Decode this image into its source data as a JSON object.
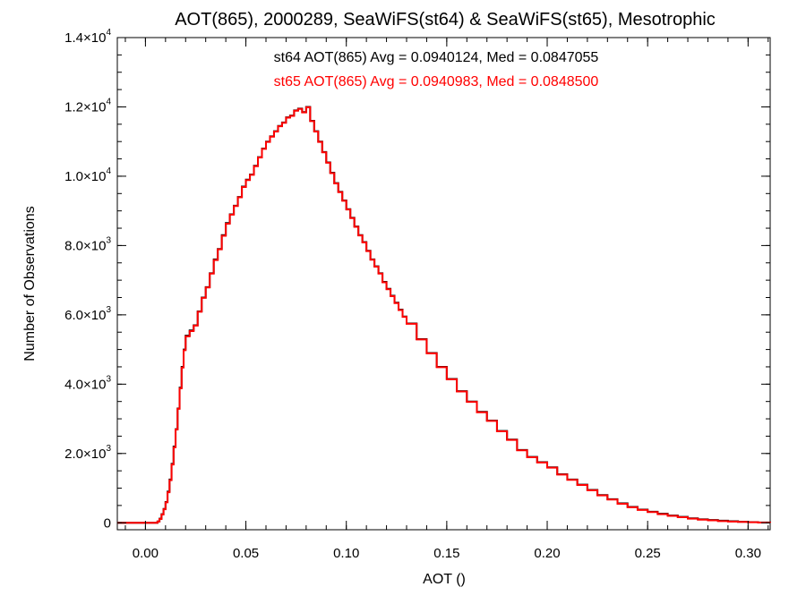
{
  "chart_data": {
    "type": "line",
    "title": "AOT(865), 2000289, SeaWiFS(st64) & SeaWiFS(st65), Mesotrophic",
    "xlabel": "AOT ()",
    "ylabel": "Number of Observations",
    "xlim": [
      -0.014,
      0.311
    ],
    "ylim": [
      -200,
      14000
    ],
    "x_ticks": [
      0.0,
      0.05,
      0.1,
      0.15,
      0.2,
      0.25,
      0.3
    ],
    "x_tick_labels": [
      "0.00",
      "0.05",
      "0.10",
      "0.15",
      "0.20",
      "0.25",
      "0.30"
    ],
    "y_ticks": [
      0,
      2000,
      4000,
      6000,
      8000,
      10000,
      12000,
      14000
    ],
    "y_tick_labels": [
      {
        "mant": "0",
        "exp": ""
      },
      {
        "mant": "2.0×10",
        "exp": "3"
      },
      {
        "mant": "4.0×10",
        "exp": "3"
      },
      {
        "mant": "6.0×10",
        "exp": "3"
      },
      {
        "mant": "8.0×10",
        "exp": "3"
      },
      {
        "mant": "1.0×10",
        "exp": "4"
      },
      {
        "mant": "1.2×10",
        "exp": "4"
      },
      {
        "mant": "1.4×10",
        "exp": "4"
      }
    ],
    "annotations": [
      {
        "text": "st64 AOT(865) Avg = 0.0940124, Med = 0.0847055",
        "color": "#000000"
      },
      {
        "text": "st65 AOT(865) Avg = 0.0940983, Med = 0.0848500",
        "color": "#ff0000"
      }
    ],
    "series": [
      {
        "color": "#000000",
        "points": [
          [
            -0.014,
            0
          ],
          [
            0.004,
            0
          ],
          [
            0.006,
            40
          ],
          [
            0.007,
            120
          ],
          [
            0.008,
            250
          ],
          [
            0.009,
            400
          ],
          [
            0.01,
            600
          ],
          [
            0.011,
            900
          ],
          [
            0.012,
            1250
          ],
          [
            0.013,
            1700
          ],
          [
            0.014,
            2200
          ],
          [
            0.015,
            2700
          ],
          [
            0.016,
            3300
          ],
          [
            0.017,
            3900
          ],
          [
            0.018,
            4500
          ],
          [
            0.019,
            5000
          ],
          [
            0.02,
            5400
          ],
          [
            0.022,
            5550
          ],
          [
            0.024,
            5700
          ],
          [
            0.026,
            6100
          ],
          [
            0.028,
            6500
          ],
          [
            0.03,
            6800
          ],
          [
            0.032,
            7200
          ],
          [
            0.034,
            7600
          ],
          [
            0.036,
            7900
          ],
          [
            0.038,
            8300
          ],
          [
            0.04,
            8650
          ],
          [
            0.042,
            8900
          ],
          [
            0.044,
            9150
          ],
          [
            0.046,
            9400
          ],
          [
            0.048,
            9700
          ],
          [
            0.05,
            9900
          ],
          [
            0.052,
            10050
          ],
          [
            0.054,
            10300
          ],
          [
            0.056,
            10550
          ],
          [
            0.058,
            10800
          ],
          [
            0.06,
            11000
          ],
          [
            0.062,
            11150
          ],
          [
            0.064,
            11300
          ],
          [
            0.066,
            11450
          ],
          [
            0.068,
            11550
          ],
          [
            0.07,
            11700
          ],
          [
            0.072,
            11750
          ],
          [
            0.074,
            11900
          ],
          [
            0.076,
            11950
          ],
          [
            0.078,
            11850
          ],
          [
            0.08,
            12000
          ],
          [
            0.082,
            11600
          ],
          [
            0.084,
            11300
          ],
          [
            0.086,
            11000
          ],
          [
            0.088,
            10700
          ],
          [
            0.09,
            10400
          ],
          [
            0.092,
            10100
          ],
          [
            0.094,
            9800
          ],
          [
            0.096,
            9550
          ],
          [
            0.098,
            9300
          ],
          [
            0.1,
            9050
          ],
          [
            0.102,
            8800
          ],
          [
            0.104,
            8550
          ],
          [
            0.106,
            8300
          ],
          [
            0.108,
            8100
          ],
          [
            0.11,
            7850
          ],
          [
            0.112,
            7600
          ],
          [
            0.114,
            7400
          ],
          [
            0.116,
            7200
          ],
          [
            0.118,
            6950
          ],
          [
            0.12,
            6750
          ],
          [
            0.122,
            6550
          ],
          [
            0.124,
            6350
          ],
          [
            0.126,
            6150
          ],
          [
            0.128,
            5950
          ],
          [
            0.13,
            5750
          ],
          [
            0.135,
            5300
          ],
          [
            0.14,
            4900
          ],
          [
            0.145,
            4500
          ],
          [
            0.15,
            4150
          ],
          [
            0.155,
            3800
          ],
          [
            0.16,
            3500
          ],
          [
            0.165,
            3200
          ],
          [
            0.17,
            2950
          ],
          [
            0.175,
            2650
          ],
          [
            0.18,
            2400
          ],
          [
            0.185,
            2100
          ],
          [
            0.19,
            1900
          ],
          [
            0.195,
            1750
          ],
          [
            0.2,
            1600
          ],
          [
            0.205,
            1400
          ],
          [
            0.21,
            1250
          ],
          [
            0.215,
            1100
          ],
          [
            0.22,
            950
          ],
          [
            0.225,
            800
          ],
          [
            0.23,
            680
          ],
          [
            0.235,
            560
          ],
          [
            0.24,
            460
          ],
          [
            0.245,
            380
          ],
          [
            0.25,
            320
          ],
          [
            0.255,
            260
          ],
          [
            0.26,
            210
          ],
          [
            0.265,
            170
          ],
          [
            0.27,
            130
          ],
          [
            0.275,
            100
          ],
          [
            0.28,
            80
          ],
          [
            0.285,
            60
          ],
          [
            0.29,
            45
          ],
          [
            0.295,
            30
          ],
          [
            0.3,
            20
          ],
          [
            0.305,
            10
          ],
          [
            0.311,
            5
          ]
        ]
      },
      {
        "color": "#ff0000",
        "points": [
          [
            -0.014,
            0
          ],
          [
            0.004,
            0
          ],
          [
            0.006,
            40
          ],
          [
            0.007,
            110
          ],
          [
            0.008,
            240
          ],
          [
            0.009,
            390
          ],
          [
            0.01,
            590
          ],
          [
            0.011,
            880
          ],
          [
            0.012,
            1230
          ],
          [
            0.013,
            1680
          ],
          [
            0.014,
            2180
          ],
          [
            0.015,
            2690
          ],
          [
            0.016,
            3290
          ],
          [
            0.017,
            3880
          ],
          [
            0.018,
            4480
          ],
          [
            0.019,
            4980
          ],
          [
            0.02,
            5380
          ],
          [
            0.022,
            5530
          ],
          [
            0.024,
            5690
          ],
          [
            0.026,
            6090
          ],
          [
            0.028,
            6490
          ],
          [
            0.03,
            6790
          ],
          [
            0.032,
            7190
          ],
          [
            0.034,
            7580
          ],
          [
            0.036,
            7890
          ],
          [
            0.038,
            8280
          ],
          [
            0.04,
            8630
          ],
          [
            0.042,
            8890
          ],
          [
            0.044,
            9140
          ],
          [
            0.046,
            9390
          ],
          [
            0.048,
            9690
          ],
          [
            0.05,
            9890
          ],
          [
            0.052,
            10040
          ],
          [
            0.054,
            10290
          ],
          [
            0.056,
            10540
          ],
          [
            0.058,
            10790
          ],
          [
            0.06,
            10990
          ],
          [
            0.062,
            11140
          ],
          [
            0.064,
            11290
          ],
          [
            0.066,
            11440
          ],
          [
            0.068,
            11540
          ],
          [
            0.07,
            11690
          ],
          [
            0.072,
            11740
          ],
          [
            0.074,
            11890
          ],
          [
            0.076,
            11940
          ],
          [
            0.078,
            11840
          ],
          [
            0.08,
            11990
          ],
          [
            0.082,
            11590
          ],
          [
            0.084,
            11290
          ],
          [
            0.086,
            10990
          ],
          [
            0.088,
            10690
          ],
          [
            0.09,
            10390
          ],
          [
            0.092,
            10090
          ],
          [
            0.094,
            9790
          ],
          [
            0.096,
            9540
          ],
          [
            0.098,
            9290
          ],
          [
            0.1,
            9040
          ],
          [
            0.102,
            8790
          ],
          [
            0.104,
            8540
          ],
          [
            0.106,
            8290
          ],
          [
            0.108,
            8090
          ],
          [
            0.11,
            7840
          ],
          [
            0.112,
            7590
          ],
          [
            0.114,
            7390
          ],
          [
            0.116,
            7190
          ],
          [
            0.118,
            6940
          ],
          [
            0.12,
            6740
          ],
          [
            0.122,
            6540
          ],
          [
            0.124,
            6340
          ],
          [
            0.126,
            6140
          ],
          [
            0.128,
            5940
          ],
          [
            0.13,
            5740
          ],
          [
            0.135,
            5290
          ],
          [
            0.14,
            4890
          ],
          [
            0.145,
            4490
          ],
          [
            0.15,
            4140
          ],
          [
            0.155,
            3790
          ],
          [
            0.16,
            3490
          ],
          [
            0.165,
            3190
          ],
          [
            0.17,
            2940
          ],
          [
            0.175,
            2640
          ],
          [
            0.18,
            2390
          ],
          [
            0.185,
            2090
          ],
          [
            0.19,
            1890
          ],
          [
            0.195,
            1740
          ],
          [
            0.2,
            1590
          ],
          [
            0.205,
            1390
          ],
          [
            0.21,
            1240
          ],
          [
            0.215,
            1090
          ],
          [
            0.22,
            940
          ],
          [
            0.225,
            790
          ],
          [
            0.23,
            670
          ],
          [
            0.235,
            550
          ],
          [
            0.24,
            450
          ],
          [
            0.245,
            370
          ],
          [
            0.25,
            310
          ],
          [
            0.255,
            250
          ],
          [
            0.26,
            200
          ],
          [
            0.265,
            160
          ],
          [
            0.27,
            120
          ],
          [
            0.275,
            90
          ],
          [
            0.28,
            70
          ],
          [
            0.285,
            50
          ],
          [
            0.29,
            35
          ],
          [
            0.295,
            25
          ],
          [
            0.3,
            15
          ],
          [
            0.305,
            8
          ],
          [
            0.311,
            4
          ]
        ]
      }
    ],
    "grid": false,
    "legend": "none"
  }
}
